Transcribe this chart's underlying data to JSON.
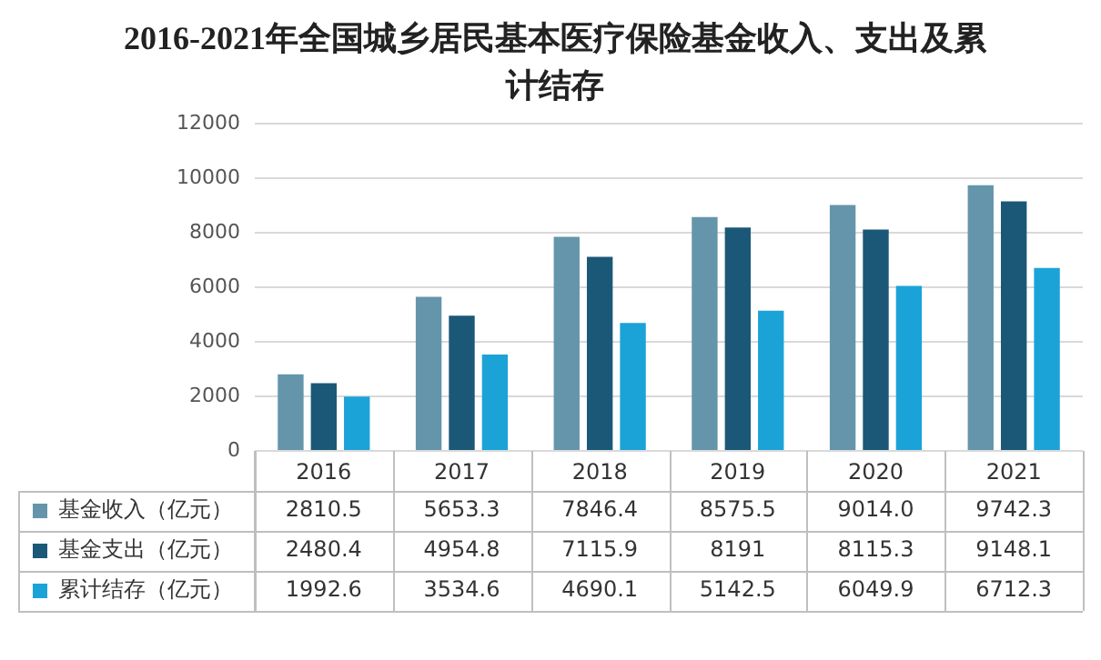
{
  "chart_data": {
    "type": "bar",
    "title": "2016-2021年全国城乡居民基本医疗保险基金收入、支出及累计结存",
    "categories": [
      "2016",
      "2017",
      "2018",
      "2019",
      "2020",
      "2021"
    ],
    "series": [
      {
        "name": "基金收入（亿元）",
        "color": "#6595ab",
        "values": [
          2810.5,
          5653.3,
          7846.4,
          8575.5,
          9014.0,
          9742.3
        ],
        "value_labels": [
          "2810.5",
          "5653.3",
          "7846.4",
          "8575.5",
          "9014.0",
          "9742.3"
        ]
      },
      {
        "name": "基金支出（亿元）",
        "color": "#1b5878",
        "values": [
          2480.4,
          4954.8,
          7115.9,
          8191,
          8115.3,
          9148.1
        ],
        "value_labels": [
          "2480.4",
          "4954.8",
          "7115.9",
          "8191",
          "8115.3",
          "9148.1"
        ]
      },
      {
        "name": "累计结存（亿元）",
        "color": "#1ba3d8",
        "values": [
          1992.6,
          3534.6,
          4690.1,
          5142.5,
          6049.9,
          6712.3
        ],
        "value_labels": [
          "1992.6",
          "3534.6",
          "4690.1",
          "5142.5",
          "6049.9",
          "6712.3"
        ]
      }
    ],
    "ylim": [
      0,
      12000
    ],
    "yticks": [
      0,
      2000,
      4000,
      6000,
      8000,
      10000,
      12000
    ],
    "grid": "y",
    "legend": "bottom"
  }
}
